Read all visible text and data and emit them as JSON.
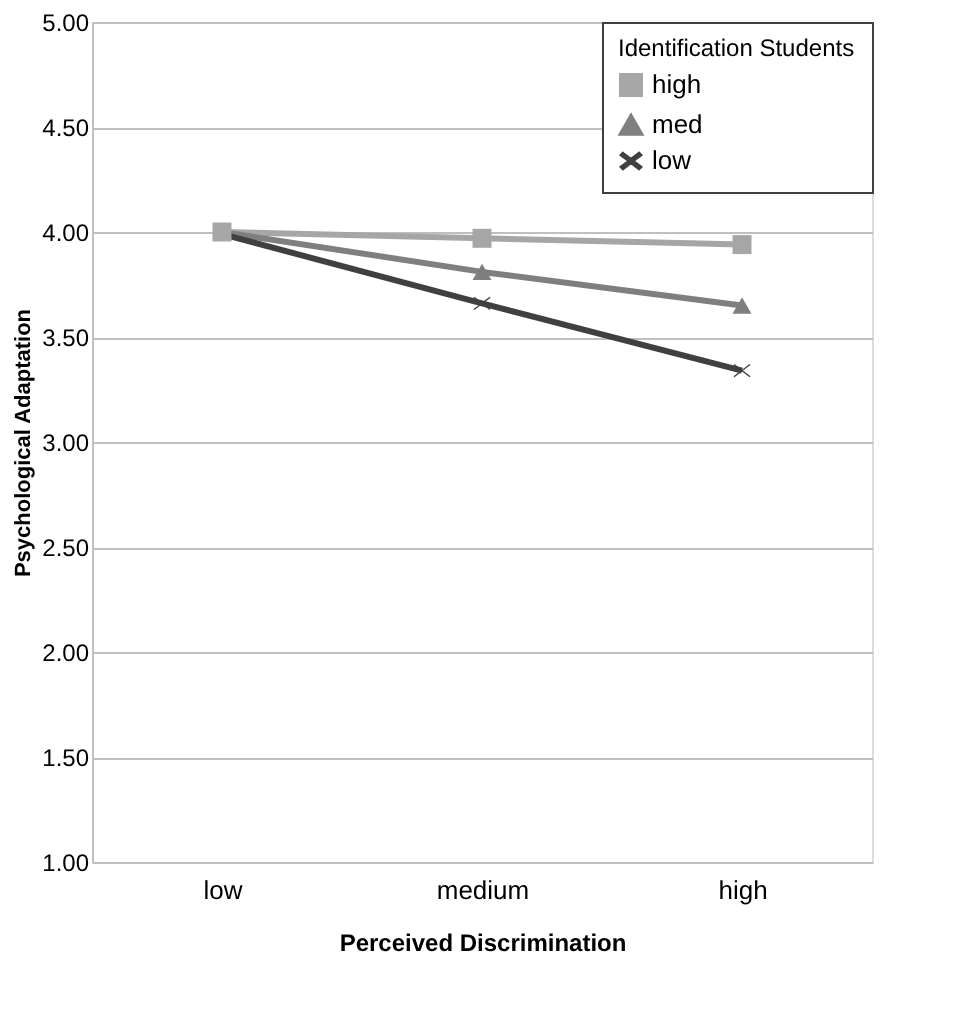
{
  "chart_data": {
    "type": "line",
    "xlabel": "Perceived Discrimination",
    "ylabel": "Psychological Adaptation",
    "legend_title": "Identification Students",
    "categories": [
      "low",
      "medium",
      "high"
    ],
    "series": [
      {
        "name": "high",
        "color": "#a6a6a6",
        "marker": "square",
        "values": [
          4.0,
          3.97,
          3.94
        ]
      },
      {
        "name": "med",
        "color": "#7f7f7f",
        "marker": "triangle",
        "values": [
          4.0,
          3.81,
          3.65
        ]
      },
      {
        "name": "low",
        "color": "#404040",
        "marker": "cross",
        "values": [
          3.99,
          3.66,
          3.34
        ]
      }
    ],
    "ylim": [
      1,
      5
    ],
    "yticks": [
      {
        "value": 1,
        "label": "1.00"
      },
      {
        "value": 1.5,
        "label": "1.50"
      },
      {
        "value": 2,
        "label": "2.00"
      },
      {
        "value": 2.5,
        "label": "2.50"
      },
      {
        "value": 3,
        "label": "3.00"
      },
      {
        "value": 3.5,
        "label": "3.50"
      },
      {
        "value": 4,
        "label": "4.00"
      },
      {
        "value": 4.5,
        "label": "4.50"
      },
      {
        "value": 5,
        "label": "5.00"
      }
    ],
    "grid": "y",
    "legend": "top right",
    "line_style": "solid"
  }
}
